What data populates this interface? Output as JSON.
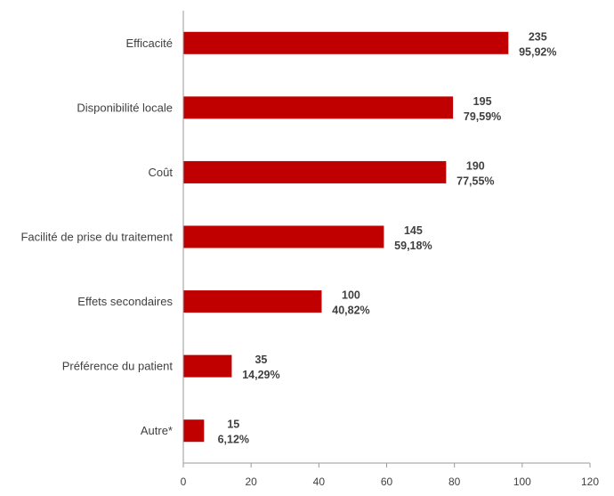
{
  "chart_data": {
    "type": "bar",
    "orientation": "horizontal",
    "categories": [
      "Efficacité",
      "Disponibilité locale",
      "Coût",
      "Facilité de prise du traitement",
      "Effets secondaires",
      "Préférence du patient",
      "Autre*"
    ],
    "series": [
      {
        "values": [
          235,
          195,
          190,
          145,
          100,
          35,
          15
        ],
        "value_labels": [
          "235",
          "195",
          "190",
          "145",
          "100",
          "35",
          "15"
        ],
        "percent_labels": [
          "95,92%",
          "79,59%",
          "77,55%",
          "59,18%",
          "40,82%",
          "14,29%",
          "6,12%"
        ]
      }
    ],
    "plotted_values": [
      95.92,
      79.59,
      77.55,
      59.18,
      40.82,
      14.29,
      6.12
    ],
    "xlim": [
      0,
      120
    ],
    "xticks": [
      "0",
      "20",
      "40",
      "60",
      "80",
      "100",
      "120"
    ],
    "title": "",
    "xlabel": "",
    "ylabel": "",
    "grid": false,
    "legend": "none",
    "bar_color": "#C00000"
  }
}
